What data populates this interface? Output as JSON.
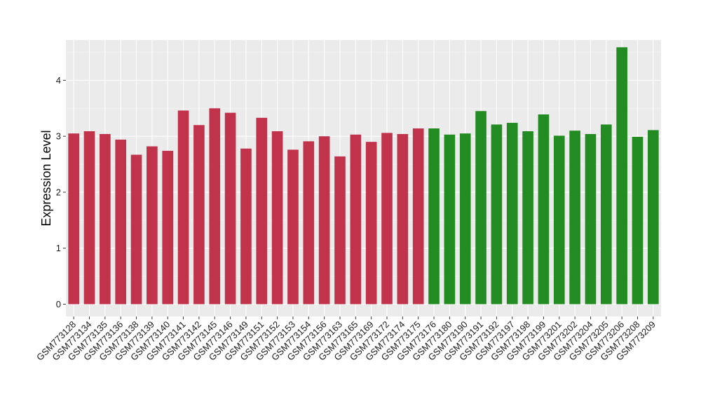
{
  "chart_data": {
    "type": "bar",
    "title": "",
    "xlabel": "",
    "ylabel": "Expression Level",
    "ylim": [
      -0.22,
      4.72
    ],
    "yticks": [
      0,
      1,
      2,
      3,
      4
    ],
    "grid": true,
    "legend": "none",
    "categories": [
      "GSM773128",
      "GSM773134",
      "GSM773135",
      "GSM773136",
      "GSM773138",
      "GSM773139",
      "GSM773140",
      "GSM773141",
      "GSM773142",
      "GSM773145",
      "GSM773146",
      "GSM773149",
      "GSM773151",
      "GSM773152",
      "GSM773153",
      "GSM773154",
      "GSM773156",
      "GSM773163",
      "GSM773165",
      "GSM773169",
      "GSM773172",
      "GSM773174",
      "GSM773175",
      "GSM773176",
      "GSM773180",
      "GSM773190",
      "GSM773191",
      "GSM773192",
      "GSM773197",
      "GSM773198",
      "GSM773199",
      "GSM773201",
      "GSM773202",
      "GSM773204",
      "GSM773205",
      "GSM773206",
      "GSM773208",
      "GSM773209"
    ],
    "values": [
      3.05,
      3.09,
      3.04,
      2.94,
      2.67,
      2.82,
      2.74,
      3.46,
      3.2,
      3.5,
      3.42,
      2.78,
      3.33,
      3.09,
      2.76,
      2.91,
      3.0,
      2.64,
      3.03,
      2.9,
      3.06,
      3.04,
      3.14,
      3.14,
      3.03,
      3.05,
      3.45,
      3.21,
      3.24,
      3.09,
      3.39,
      3.01,
      3.1,
      3.04,
      3.21,
      4.59,
      2.99,
      3.11
    ],
    "groups": [
      "red",
      "red",
      "red",
      "red",
      "red",
      "red",
      "red",
      "red",
      "red",
      "red",
      "red",
      "red",
      "red",
      "red",
      "red",
      "red",
      "red",
      "red",
      "red",
      "red",
      "red",
      "red",
      "red",
      "green",
      "green",
      "green",
      "green",
      "green",
      "green",
      "green",
      "green",
      "green",
      "green",
      "green",
      "green",
      "green",
      "green",
      "green"
    ],
    "colors": {
      "red": "#c0334a",
      "green": "#228b22",
      "panel": "#ebebeb",
      "grid_major": "#ffffff",
      "grid_minor": "#f5f5f5"
    }
  }
}
